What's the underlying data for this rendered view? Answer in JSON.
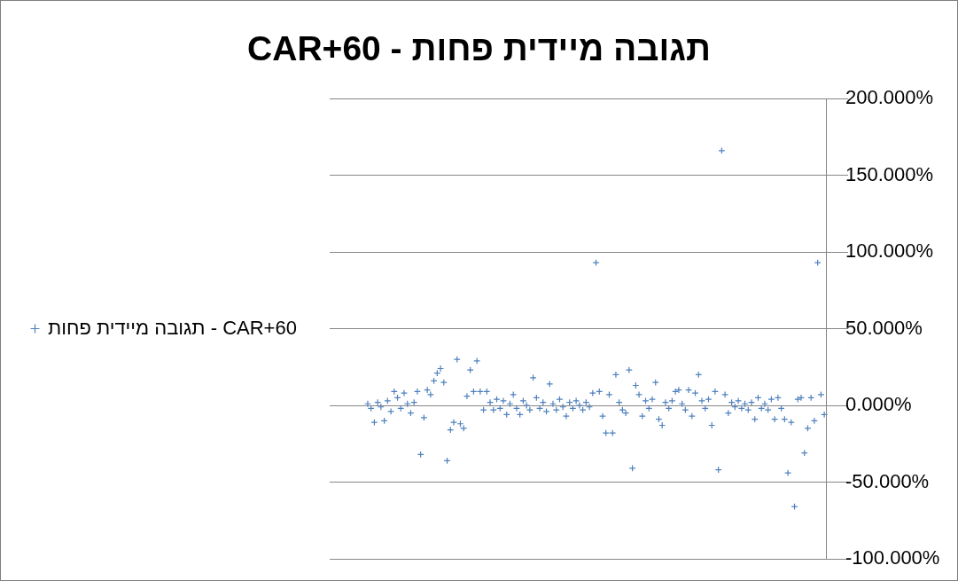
{
  "chart_data": {
    "type": "scatter",
    "title": "תגובה מיידית פחות - CAR+60",
    "categories": [
      null,
      null,
      null,
      null,
      null,
      null,
      null,
      null,
      null,
      null,
      null,
      null,
      null,
      null,
      null,
      null,
      null,
      null,
      null,
      null,
      null,
      null,
      null,
      null,
      null,
      null,
      null,
      null,
      null,
      null,
      null,
      null,
      null,
      null,
      null,
      null,
      null,
      null,
      null,
      null,
      null,
      null,
      null,
      null,
      null,
      null,
      null,
      null,
      null,
      null,
      null,
      null,
      null,
      null,
      null,
      null,
      null,
      null,
      null,
      null,
      null,
      null,
      null,
      null,
      null,
      null,
      null,
      null,
      null,
      null,
      null,
      null,
      null,
      null,
      null,
      null,
      null,
      null,
      null,
      null,
      null,
      null,
      null,
      null,
      null,
      null,
      null,
      null,
      null,
      null,
      null,
      null,
      null,
      null,
      null,
      null,
      null,
      null,
      null,
      null,
      null,
      null,
      null,
      null,
      null,
      null,
      null,
      null,
      null,
      null,
      null,
      null,
      null,
      null,
      null,
      null,
      null,
      null,
      null,
      null,
      null,
      null,
      null,
      null,
      null,
      null,
      null,
      null,
      null,
      null,
      null,
      null,
      null,
      null,
      null,
      null,
      null,
      null,
      null,
      null,
      null,
      null,
      null,
      null,
      null,
      null,
      null,
      null,
      null,
      null
    ],
    "series": [
      {
        "name": "תגובה מיידית פחות - CAR+60",
        "color": "#4f81bd",
        "values": [
          null,
          null,
          null,
          null,
          null,
          null,
          null,
          null,
          null,
          null,
          null,
          1,
          -2,
          -11,
          2,
          -1,
          -10,
          3,
          -4,
          9,
          5,
          -2,
          8,
          1,
          -5,
          2,
          9,
          -32,
          -8,
          10,
          7,
          16,
          21,
          24,
          15,
          -36,
          -16,
          -11,
          30,
          -12,
          -15,
          6,
          23,
          9,
          29,
          9,
          -3,
          9,
          2,
          -3,
          4,
          -2,
          3,
          -6,
          1,
          7,
          -2,
          -6,
          3,
          0,
          -3,
          18,
          5,
          -2,
          2,
          -4,
          14,
          1,
          -3,
          4,
          -1,
          -7,
          2,
          -2,
          3,
          0,
          -3,
          2,
          -1,
          8,
          93,
          9,
          -7,
          -18,
          7,
          -18,
          20,
          2,
          -3,
          -5,
          23,
          -41,
          13,
          7,
          -7,
          3,
          -2,
          4,
          15,
          -9,
          -13,
          2,
          -2,
          3,
          9,
          10,
          1,
          -3,
          10,
          -7,
          8,
          20,
          3,
          -2,
          4,
          -13,
          9,
          -42,
          166,
          7,
          -5,
          2,
          -1,
          3,
          -2,
          1,
          -3,
          2,
          -9,
          5,
          -2,
          1,
          -3,
          4,
          -9,
          5,
          -2,
          -9,
          -44,
          -11,
          -66,
          4,
          5,
          -31,
          -15,
          5,
          -10,
          93,
          7,
          -6
        ]
      }
    ],
    "ylim": [
      -100,
      200
    ],
    "yticks": [
      {
        "value": -100,
        "label": "-100.000%"
      },
      {
        "value": -50,
        "label": "-50.000%"
      },
      {
        "value": 0,
        "label": "0.000%"
      },
      {
        "value": 50,
        "label": "50.000%"
      },
      {
        "value": 100,
        "label": "100.000%"
      },
      {
        "value": 150,
        "label": "150.000%"
      },
      {
        "value": 200,
        "label": "200.000%"
      }
    ],
    "grid": "y",
    "legend": "left",
    "marker": "cross",
    "tick_labels": "y"
  }
}
